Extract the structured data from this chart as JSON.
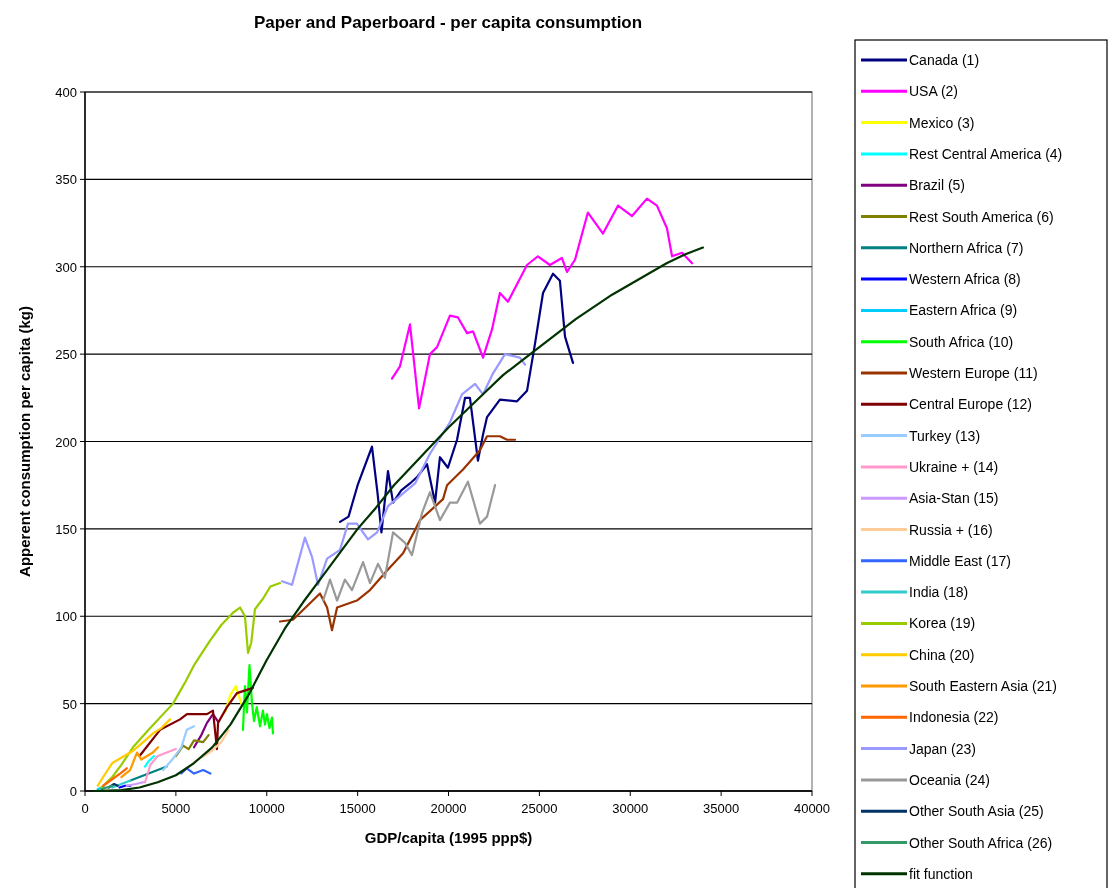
{
  "chart_data": {
    "type": "line",
    "title": "Paper and Paperboard - per capita consumption",
    "xlabel": "GDP/capita (1995 ppp$)",
    "ylabel": "Apperent consumption per capita (kg)",
    "xlim": [
      0,
      40000
    ],
    "ylim": [
      0,
      400
    ],
    "xticks": [
      0,
      5000,
      10000,
      15000,
      20000,
      25000,
      30000,
      35000,
      40000
    ],
    "yticks": [
      0,
      50,
      100,
      150,
      200,
      250,
      300,
      350,
      400
    ],
    "grid": "y",
    "legend": "right",
    "marker": "none",
    "line_style": "solid",
    "series": [
      {
        "name": "Canada (1)",
        "color": "#000080",
        "x": [
          14030,
          14500,
          15000,
          15790,
          16100,
          16310,
          16670,
          16950,
          17400,
          17880,
          18300,
          18820,
          19260,
          19530,
          19970,
          20470,
          20910,
          21180,
          21620,
          21900,
          22120,
          22830,
          23770,
          24320,
          24760,
          25200,
          25750,
          26130,
          26410,
          26850
        ],
        "values": [
          154,
          157,
          175,
          197,
          170,
          148,
          183,
          165,
          172,
          176,
          180,
          187,
          165,
          191,
          185,
          201,
          225,
          225,
          189,
          204,
          214,
          224,
          223,
          229,
          256,
          285,
          296,
          292,
          260,
          245
        ]
      },
      {
        "name": "USA (2)",
        "color": "#ff00ff",
        "x": [
          16890,
          17330,
          17880,
          18380,
          18980,
          19370,
          20080,
          20520,
          21020,
          21350,
          21900,
          22390,
          22830,
          23270,
          24320,
          24920,
          25580,
          26240,
          26520,
          26960,
          27670,
          28500,
          29330,
          30100,
          30920,
          31470,
          32020,
          32300,
          32850,
          33400
        ],
        "values": [
          236,
          243,
          267,
          219,
          250,
          254,
          272,
          271,
          262,
          263,
          248,
          264,
          285,
          280,
          301,
          306,
          301,
          305,
          297,
          304,
          331,
          319,
          335,
          329,
          339,
          335,
          322,
          306,
          308,
          302
        ]
      },
      {
        "name": "Mexico (3)",
        "color": "#ffff00",
        "x": [
          7700,
          8000,
          8300,
          8600
        ],
        "values": [
          45,
          55,
          60,
          50
        ]
      },
      {
        "name": "Rest Central America (4)",
        "color": "#00ffff",
        "x": [
          3300,
          3500,
          3800
        ],
        "values": [
          14,
          17,
          20
        ]
      },
      {
        "name": "Brazil (5)",
        "color": "#800080",
        "x": [
          6000,
          6400,
          6710,
          7040,
          7300
        ],
        "values": [
          25,
          32,
          39,
          44,
          40
        ]
      },
      {
        "name": "Rest South America (6)",
        "color": "#808000",
        "x": [
          5000,
          5400,
          5700,
          6000,
          6500,
          6800
        ],
        "values": [
          20,
          26,
          24,
          29,
          28,
          32
        ]
      },
      {
        "name": "Northern Africa (7)",
        "color": "#008080",
        "x": [
          2500,
          3000,
          3500,
          4000,
          4500
        ],
        "values": [
          6,
          8,
          10,
          12,
          14
        ]
      },
      {
        "name": "Western Africa (8)",
        "color": "#0000ff",
        "x": [
          1900,
          2200,
          2500
        ],
        "values": [
          2,
          3,
          3
        ]
      },
      {
        "name": "Eastern Africa (9)",
        "color": "#00ccff",
        "x": [
          700,
          900,
          1100
        ],
        "values": [
          1,
          2,
          2
        ]
      },
      {
        "name": "South Africa (10)",
        "color": "#00ff00",
        "x": [
          8690,
          8800,
          8910,
          9050,
          9190,
          9300,
          9450,
          9630,
          9790,
          9900,
          10010,
          10150,
          10290,
          10340
        ],
        "values": [
          35,
          60,
          45,
          72,
          50,
          40,
          48,
          37,
          46,
          38,
          44,
          36,
          42,
          33
        ]
      },
      {
        "name": "Western Europe (11)",
        "color": "#993300",
        "x": [
          10730,
          11440,
          12930,
          13320,
          13590,
          13870,
          14960,
          15680,
          16610,
          17500,
          18430,
          19700,
          19920,
          20800,
          21730,
          22120,
          22830,
          23220,
          23660
        ],
        "values": [
          97,
          98,
          113,
          105,
          92,
          105,
          109,
          115,
          126,
          136,
          155,
          167,
          175,
          184,
          195,
          203,
          203,
          201,
          201
        ]
      },
      {
        "name": "Central Europe (12)",
        "color": "#800000",
        "x": [
          3000,
          4130,
          5230,
          5610,
          6710,
          7040,
          7260,
          7320,
          7810,
          8360,
          9240
        ],
        "values": [
          20,
          35,
          41,
          44,
          44,
          46,
          24,
          39,
          48,
          56,
          59
        ]
      },
      {
        "name": "Turkey (13)",
        "color": "#99ccff",
        "x": [
          4300,
          4800,
          5300,
          5600,
          6000
        ],
        "values": [
          12,
          18,
          25,
          35,
          37
        ]
      },
      {
        "name": "Ukraine + (14)",
        "color": "#ff99cc",
        "x": [
          3300,
          3600,
          4000,
          4500,
          5000
        ],
        "values": [
          5,
          15,
          20,
          22,
          24
        ]
      },
      {
        "name": "Asia-Stan (15)",
        "color": "#cc99ff",
        "x": [
          2300,
          2800,
          3200
        ],
        "values": [
          3,
          4,
          5
        ]
      },
      {
        "name": "Russia + (16)",
        "color": "#ffcc99",
        "x": [
          5500,
          6200,
          7000,
          7500,
          7900
        ],
        "values": [
          12,
          18,
          23,
          28,
          35
        ]
      },
      {
        "name": "Middle East (17)",
        "color": "#3366ff",
        "x": [
          5300,
          5600,
          6000,
          6500,
          6900
        ],
        "values": [
          10,
          13,
          10,
          12,
          10
        ]
      },
      {
        "name": "India (18)",
        "color": "#33cccc",
        "x": [
          1500,
          2000,
          2500
        ],
        "values": [
          2,
          4,
          6
        ]
      },
      {
        "name": "Korea (19)",
        "color": "#99cc00",
        "x": [
          900,
          1500,
          2000,
          2640,
          3500,
          4840,
          5500,
          6000,
          6880,
          7500,
          8140,
          8530,
          8800,
          8970,
          9150,
          9350,
          9790,
          10200,
          10730
        ],
        "values": [
          2,
          8,
          15,
          25,
          35,
          50,
          62,
          72,
          86,
          95,
          102,
          105,
          100,
          79,
          85,
          104,
          110,
          117,
          119
        ]
      },
      {
        "name": "China (20)",
        "color": "#ffcc00",
        "x": [
          700,
          1000,
          1500,
          2000,
          2640,
          3200,
          3740,
          4200,
          4680
        ],
        "values": [
          3,
          8,
          16,
          19,
          23,
          28,
          33,
          36,
          41
        ]
      },
      {
        "name": "South Eastern Asia (21)",
        "color": "#ff9900",
        "x": [
          2000,
          2480,
          2860,
          3100,
          3410,
          3740,
          4020
        ],
        "values": [
          8,
          12,
          22,
          18,
          20,
          22,
          25
        ]
      },
      {
        "name": "Indonesia (22)",
        "color": "#ff6600",
        "x": [
          1000,
          1400,
          1930,
          2300
        ],
        "values": [
          3,
          6,
          10,
          13
        ]
      },
      {
        "name": "Japan (23)",
        "color": "#9999ff",
        "x": [
          10840,
          11390,
          12100,
          12490,
          12820,
          13320,
          14030,
          14470,
          14960,
          15570,
          16070,
          16670,
          18160,
          18980,
          20080,
          20740,
          21460,
          21900,
          22450,
          23110,
          23930,
          24210
        ],
        "values": [
          120,
          118,
          145,
          134,
          118,
          133,
          138,
          153,
          153,
          144,
          148,
          163,
          176,
          193,
          211,
          227,
          233,
          227,
          239,
          250,
          248,
          244
        ]
      },
      {
        "name": "Oceania (24)",
        "color": "#999999",
        "x": [
          13100,
          13480,
          13870,
          14300,
          14690,
          15300,
          15680,
          16120,
          16500,
          16950,
          17610,
          17990,
          18540,
          18980,
          19530,
          20080,
          20470,
          21070,
          21730,
          22120,
          22560
        ],
        "values": [
          109,
          121,
          109,
          121,
          115,
          131,
          119,
          130,
          122,
          148,
          142,
          135,
          159,
          171,
          155,
          165,
          165,
          177,
          153,
          157,
          175
        ]
      },
      {
        "name": "Other South Asia (25)",
        "color": "#003366",
        "x": [
          1300,
          1600,
          1800
        ],
        "values": [
          2,
          4,
          3
        ]
      },
      {
        "name": "Other South Africa (26)",
        "color": "#339966",
        "x": [
          900,
          1200,
          1500
        ],
        "values": [
          1,
          2,
          3
        ]
      },
      {
        "name": "fit function",
        "color": "#003300",
        "x": [
          500,
          2000,
          3000,
          4000,
          5000,
          6000,
          7000,
          8000,
          9000,
          10000,
          11000,
          12000,
          13000,
          14000,
          15000,
          16000,
          17000,
          18000,
          19000,
          20000,
          21000,
          22000,
          23000,
          24000,
          25000,
          26000,
          27000,
          28000,
          29000,
          30000,
          31000,
          32000,
          33000,
          34000
        ],
        "values": [
          0,
          0.5,
          2,
          5,
          9,
          16,
          25,
          38,
          55,
          75,
          93,
          108,
          122,
          136,
          150,
          162,
          175,
          186,
          197,
          208,
          218,
          228,
          238,
          246,
          254,
          262,
          270,
          277,
          284,
          290,
          296,
          302,
          307,
          311
        ]
      }
    ]
  }
}
